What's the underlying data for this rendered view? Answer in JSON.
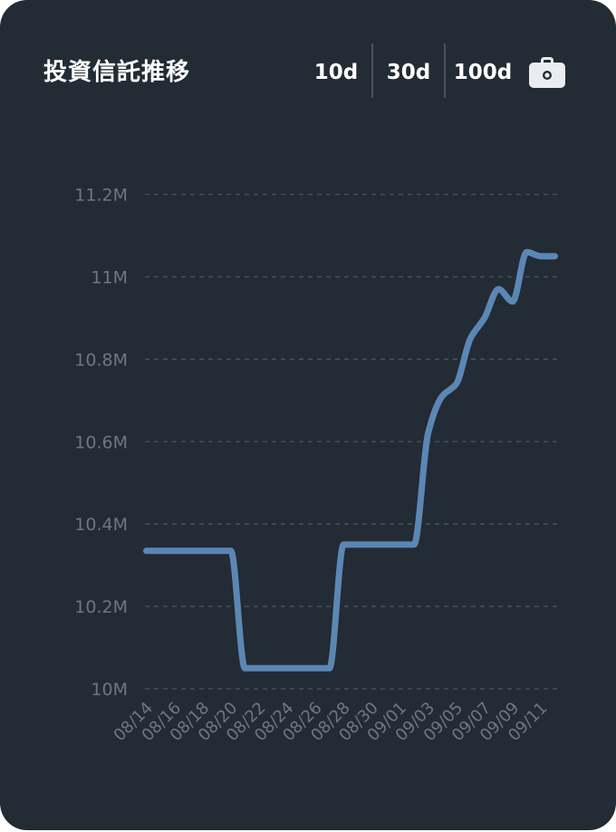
{
  "header": {
    "title": "投資信託推移",
    "ranges": [
      "10d",
      "30d",
      "100d"
    ],
    "bag_icon": "briefcase-icon"
  },
  "colors": {
    "background": "#232b35",
    "line": "#5b87b5",
    "grid": "#4a5561",
    "tick_text": "#6d7784",
    "title": "#ffffff"
  },
  "chart_data": {
    "type": "line",
    "title": "",
    "xlabel": "",
    "ylabel": "",
    "ylim": [
      10000000,
      11200000
    ],
    "yticks": [
      10000000,
      10200000,
      10400000,
      10600000,
      10800000,
      11000000,
      11200000
    ],
    "ytick_labels": [
      "10M",
      "10.2M",
      "10.4M",
      "10.6M",
      "10.8M",
      "11M",
      "11.2M"
    ],
    "xticks": [
      "08/14",
      "08/16",
      "08/18",
      "08/20",
      "08/22",
      "08/24",
      "08/26",
      "08/28",
      "08/30",
      "09/01",
      "09/03",
      "09/05",
      "09/07",
      "09/09",
      "09/11"
    ],
    "grid": true,
    "series": [
      {
        "x": [
          "08/14",
          "08/15",
          "08/16",
          "08/17",
          "08/18",
          "08/19",
          "08/20",
          "08/21",
          "08/22",
          "08/23",
          "08/24",
          "08/25",
          "08/26",
          "08/27",
          "08/28",
          "08/29",
          "08/30",
          "08/31",
          "09/01",
          "09/02",
          "09/03",
          "09/04",
          "09/05",
          "09/06",
          "09/07",
          "09/08",
          "09/09",
          "09/10",
          "09/11",
          "09/12"
        ],
        "values": [
          10335000,
          10335000,
          10335000,
          10335000,
          10335000,
          10335000,
          10335000,
          10050000,
          10050000,
          10050000,
          10050000,
          10050000,
          10050000,
          10050000,
          10350000,
          10350000,
          10350000,
          10350000,
          10350000,
          10350000,
          10620000,
          10710000,
          10740000,
          10850000,
          10900000,
          10970000,
          10940000,
          11060000,
          11050000,
          11050000
        ]
      }
    ]
  }
}
